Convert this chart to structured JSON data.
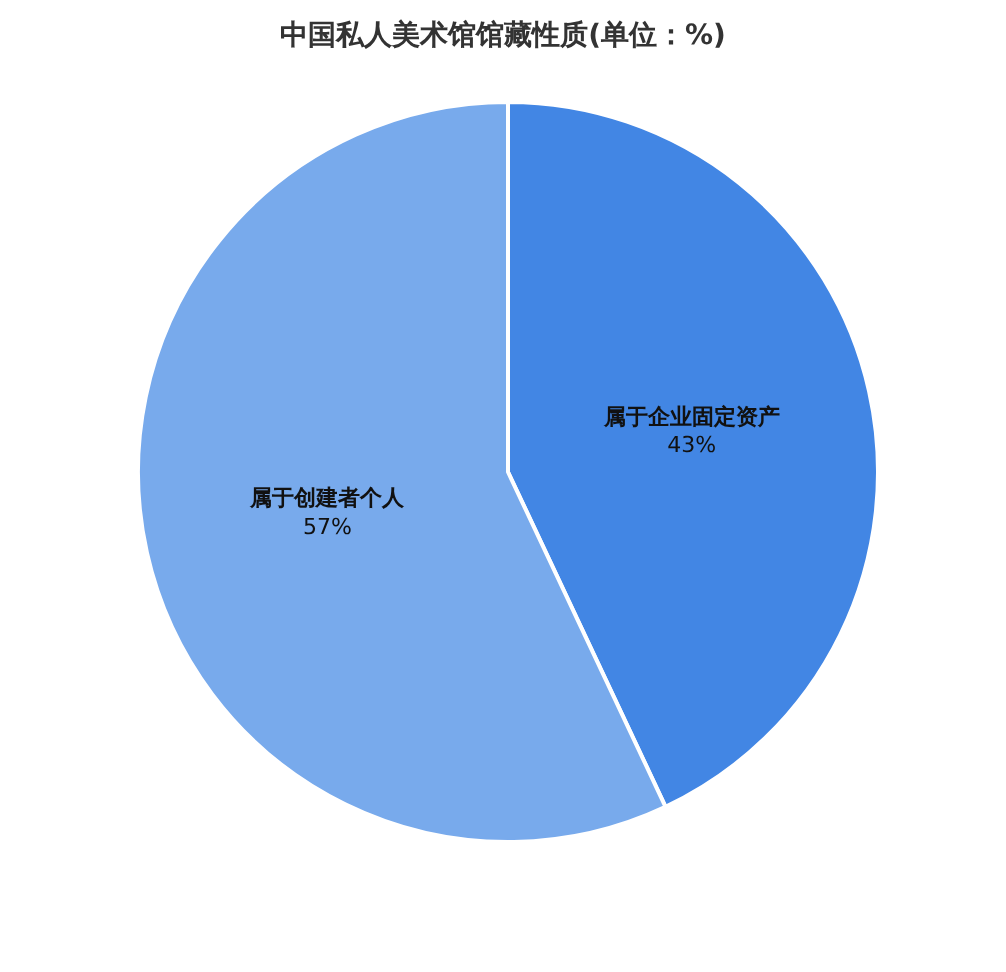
{
  "chart_data": {
    "type": "pie",
    "title": "中国私人美术馆馆藏性质(单位：%)",
    "categories": [
      "属于企业固定资产",
      "属于创建者个人"
    ],
    "values": [
      43,
      57
    ],
    "colors": [
      "#4286e4",
      "#78aaec"
    ],
    "value_labels": [
      "43%",
      "57%"
    ],
    "legend": false
  }
}
